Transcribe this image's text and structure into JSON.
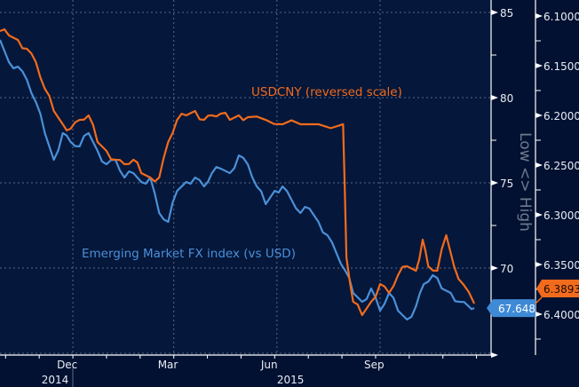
{
  "chart_data": {
    "type": "line",
    "title": "",
    "x_unit": "days from 1 Dec 2014",
    "x_tick_labels": [
      {
        "label": "Dec",
        "x": 0
      },
      {
        "label": "Mar",
        "x": 90
      },
      {
        "label": "Jun",
        "x": 182
      },
      {
        "label": "Sep",
        "x": 274
      }
    ],
    "year_labels": [
      {
        "label": "2014",
        "x": -28
      },
      {
        "label": "2015",
        "x": 182
      }
    ],
    "xlim": [
      -65,
      373
    ],
    "left_axis": {
      "ylim": [
        65,
        86.5
      ],
      "ticks": [
        "85",
        "80",
        "75",
        "70"
      ],
      "tick_values": [
        85,
        80,
        75,
        70
      ]
    },
    "right_axis": {
      "ylim": [
        6.4357,
        6.0853
      ],
      "reversed": true,
      "ticks": [
        "6.1000",
        "6.1500",
        "6.2000",
        "6.2500",
        "6.3000",
        "6.3500",
        "6.4000"
      ],
      "tick_values": [
        6.1,
        6.15,
        6.2,
        6.25,
        6.3,
        6.35,
        6.4
      ],
      "label": "Low <> High"
    },
    "series": [
      {
        "name": "Emerging Market FX index (vs USD)",
        "axis": "left",
        "color": "#4a90d9",
        "last_value_label": "67.648",
        "x": [
          -65,
          -57,
          -49,
          -41,
          -33,
          -25,
          -17,
          -9,
          -2,
          6,
          14,
          22,
          30,
          38,
          46,
          54,
          61,
          69,
          77,
          85,
          93,
          101,
          109,
          117,
          124,
          132,
          140,
          148,
          156,
          164,
          172,
          180,
          187,
          195,
          203,
          211,
          219,
          227,
          235,
          243,
          250,
          258,
          266,
          274,
          282,
          290,
          298,
          306,
          313,
          321,
          329,
          337,
          345,
          353,
          358
        ],
        "values": [
          83.39,
          82.08,
          81.82,
          81.04,
          79.74,
          77.92,
          76.35,
          77.92,
          77.4,
          77.14,
          77.92,
          76.88,
          76.09,
          76.35,
          75.31,
          75.57,
          75.05,
          75.31,
          73.23,
          72.71,
          74.53,
          75.05,
          75.31,
          74.79,
          75.57,
          75.83,
          75.57,
          76.61,
          76.09,
          74.79,
          73.75,
          74.53,
          74.79,
          74.01,
          73.23,
          73.49,
          72.71,
          71.93,
          70.89,
          69.84,
          68.54,
          68.02,
          68.8,
          67.5,
          68.54,
          67.5,
          66.98,
          67.76,
          69.06,
          69.58,
          68.8,
          68.54,
          68.02,
          67.76,
          67.65
        ]
      },
      {
        "name": "USDCNY (reversed scale)",
        "axis": "right",
        "color": "#f26b1d",
        "last_value_label": "6.3893",
        "x": [
          -65,
          -57,
          -49,
          -41,
          -33,
          -25,
          -17,
          -9,
          -2,
          6,
          14,
          22,
          30,
          38,
          46,
          54,
          61,
          69,
          77,
          85,
          93,
          101,
          109,
          117,
          124,
          132,
          140,
          148,
          156,
          172,
          187,
          203,
          219,
          241,
          244,
          250,
          258,
          266,
          274,
          282,
          290,
          298,
          306,
          312,
          317,
          325,
          333,
          340,
          348,
          358
        ],
        "values": [
          6.1152,
          6.1196,
          6.1241,
          6.133,
          6.1464,
          6.1732,
          6.1955,
          6.2089,
          6.2134,
          6.2045,
          6.2,
          6.2268,
          6.2357,
          6.2446,
          6.2491,
          6.2446,
          6.258,
          6.2625,
          6.2625,
          6.2268,
          6.2045,
          6.2,
          6.1955,
          6.2045,
          6.2,
          6.1982,
          6.2045,
          6.2,
          6.2018,
          6.2045,
          6.2089,
          6.2089,
          6.2089,
          6.2089,
          6.3429,
          6.3875,
          6.4009,
          6.3875,
          6.3696,
          6.3786,
          6.3607,
          6.3518,
          6.3563,
          6.325,
          6.3518,
          6.3563,
          6.3205,
          6.3518,
          6.3696,
          6.3893
        ]
      }
    ],
    "grid": true
  }
}
